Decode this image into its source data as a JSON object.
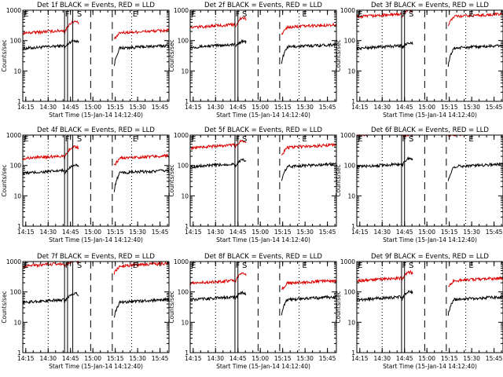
{
  "colors": {
    "events": "#000000",
    "lld": "#dd0000",
    "frame": "#000000",
    "background": "#ffffff"
  },
  "x_tick_labels": [
    "14:15",
    "14:30",
    "14:45",
    "15:00",
    "15:15",
    "15:30",
    "15:45"
  ],
  "y_tick_labels": [
    "1",
    "10",
    "100",
    "1000"
  ],
  "xlabel": "Start Time (15-Jan-14 14:12:40)",
  "ylabel": "Counts/sec",
  "chart_data": [
    {
      "type": "line",
      "title": "Det 1f BLACK = Events, RED = LLD",
      "xlabel": "Start Time (15-Jan-14 14:12:40)",
      "ylabel": "Counts/sec",
      "y_scale": "log",
      "ylim": [
        1,
        1000
      ],
      "x_range_min": [
        0,
        98
      ],
      "x_ticks_min": [
        2,
        17,
        32,
        47,
        62,
        77,
        92
      ],
      "x_tick_labels": [
        "14:15",
        "14:30",
        "14:45",
        "15:00",
        "15:15",
        "15:30",
        "15:45"
      ],
      "series": [
        {
          "name": "Events",
          "color": "#000000",
          "level": 55,
          "spike_level": 100,
          "notch_level": 12
        },
        {
          "name": "LLD",
          "color": "#dd0000",
          "level": 175,
          "spike_level": 420,
          "notch_level": 100
        }
      ],
      "gap_min": [
        37.5,
        61.0
      ],
      "regions": {
        "solid": [
          28.0,
          30.0,
          33.5
        ],
        "dashed": [
          45.5,
          60.0
        ],
        "dotted": [
          17.0,
          73.0
        ]
      },
      "markers": [
        {
          "label": "E",
          "x_min": 0.6
        },
        {
          "label": "F",
          "x_min": 28.3
        },
        {
          "label": "S",
          "x_min": 36.3
        },
        {
          "label": "E",
          "x_min": 73.6
        }
      ]
    },
    {
      "type": "line",
      "title": "Det 2f BLACK = Events, RED = LLD",
      "xlabel": "Start Time (15-Jan-14 14:12:40)",
      "ylabel": "Counts/sec",
      "y_scale": "log",
      "ylim": [
        1,
        1000
      ],
      "x_range_min": [
        0,
        98
      ],
      "x_ticks_min": [
        2,
        17,
        32,
        47,
        62,
        77,
        92
      ],
      "x_tick_labels": [
        "14:15",
        "14:30",
        "14:45",
        "15:00",
        "15:15",
        "15:30",
        "15:45"
      ],
      "series": [
        {
          "name": "Events",
          "color": "#000000",
          "level": 60,
          "spike_level": 95,
          "notch_level": 15
        },
        {
          "name": "LLD",
          "color": "#dd0000",
          "level": 270,
          "spike_level": 550,
          "notch_level": 150
        }
      ],
      "gap_min": [
        37.5,
        61.0
      ],
      "regions": {
        "solid": [
          30.0,
          32.0
        ],
        "dashed": [
          45.5,
          60.0
        ],
        "dotted": [
          17.0,
          73.0
        ]
      },
      "markers": [
        {
          "label": "E",
          "x_min": 0.6
        },
        {
          "label": "F",
          "x_min": 30.3
        },
        {
          "label": "S",
          "x_min": 34.8
        },
        {
          "label": "E",
          "x_min": 75.0
        }
      ]
    },
    {
      "type": "line",
      "title": "Det 3f BLACK = Events, RED = LLD",
      "xlabel": "Start Time (15-Jan-14 14:12:40)",
      "ylabel": "Counts/sec",
      "y_scale": "log",
      "ylim": [
        1,
        1000
      ],
      "x_range_min": [
        0,
        98
      ],
      "x_ticks_min": [
        2,
        17,
        32,
        47,
        62,
        77,
        92
      ],
      "x_tick_labels": [
        "14:15",
        "14:30",
        "14:45",
        "15:00",
        "15:15",
        "15:30",
        "15:45"
      ],
      "series": [
        {
          "name": "Events",
          "color": "#000000",
          "level": 55,
          "spike_level": 85,
          "notch_level": 12
        },
        {
          "name": "LLD",
          "color": "#dd0000",
          "level": 600,
          "spike_level": 1000,
          "notch_level": 300
        }
      ],
      "gap_min": [
        37.5,
        61.0
      ],
      "regions": {
        "solid": [
          30.0,
          32.0
        ],
        "dashed": [
          45.5,
          60.0
        ],
        "dotted": [
          17.0,
          73.0
        ]
      },
      "markers": [
        {
          "label": "E",
          "x_min": 0.6
        },
        {
          "label": "F",
          "x_min": 30.3
        },
        {
          "label": "S",
          "x_min": 34.8
        },
        {
          "label": "E",
          "x_min": 75.0
        }
      ]
    },
    {
      "type": "line",
      "title": "Det 4f BLACK = Events, RED = LLD",
      "xlabel": "Start Time (15-Jan-14 14:12:40)",
      "ylabel": "Counts/sec",
      "y_scale": "log",
      "ylim": [
        1,
        1000
      ],
      "x_range_min": [
        0,
        98
      ],
      "x_ticks_min": [
        2,
        17,
        32,
        47,
        62,
        77,
        92
      ],
      "x_tick_labels": [
        "14:15",
        "14:30",
        "14:45",
        "15:00",
        "15:15",
        "15:30",
        "15:45"
      ],
      "series": [
        {
          "name": "Events",
          "color": "#000000",
          "level": 55,
          "spike_level": 100,
          "notch_level": 12
        },
        {
          "name": "LLD",
          "color": "#dd0000",
          "level": 170,
          "spike_level": 420,
          "notch_level": 90
        }
      ],
      "gap_min": [
        37.5,
        61.0
      ],
      "regions": {
        "solid": [
          28.0,
          30.0,
          33.5
        ],
        "dashed": [
          45.5,
          60.0
        ],
        "dotted": [
          17.0,
          73.0
        ]
      },
      "markers": [
        {
          "label": "E",
          "x_min": 0.6
        },
        {
          "label": "F",
          "x_min": 28.3
        },
        {
          "label": "S",
          "x_min": 36.3
        },
        {
          "label": "E",
          "x_min": 73.6
        }
      ]
    },
    {
      "type": "line",
      "title": "Det 5f BLACK = Events, RED = LLD",
      "xlabel": "Start Time (15-Jan-14 14:12:40)",
      "ylabel": "Counts/sec",
      "y_scale": "log",
      "ylim": [
        1,
        1000
      ],
      "x_range_min": [
        0,
        98
      ],
      "x_ticks_min": [
        2,
        17,
        32,
        47,
        62,
        77,
        92
      ],
      "x_tick_labels": [
        "14:15",
        "14:30",
        "14:45",
        "15:00",
        "15:15",
        "15:30",
        "15:45"
      ],
      "series": [
        {
          "name": "Events",
          "color": "#000000",
          "level": 90,
          "spike_level": 150,
          "notch_level": 25
        },
        {
          "name": "LLD",
          "color": "#dd0000",
          "level": 380,
          "spike_level": 650,
          "notch_level": 200
        }
      ],
      "gap_min": [
        37.5,
        61.0
      ],
      "regions": {
        "solid": [
          30.0,
          32.0
        ],
        "dashed": [
          45.5,
          60.0
        ],
        "dotted": [
          17.0,
          73.0
        ]
      },
      "markers": [
        {
          "label": "E",
          "x_min": 0.6
        },
        {
          "label": "F",
          "x_min": 30.3
        },
        {
          "label": "S",
          "x_min": 34.8
        },
        {
          "label": "E",
          "x_min": 75.0
        }
      ]
    },
    {
      "type": "line",
      "title": "Det 6f BLACK = Events, RED = LLD",
      "xlabel": "Start Time (15-Jan-14 14:12:40)",
      "ylabel": "Counts/sec",
      "y_scale": "log",
      "ylim": [
        1,
        1000
      ],
      "x_range_min": [
        0,
        98
      ],
      "x_ticks_min": [
        2,
        17,
        32,
        47,
        62,
        77,
        92
      ],
      "x_tick_labels": [
        "14:15",
        "14:30",
        "14:45",
        "15:00",
        "15:15",
        "15:30",
        "15:45"
      ],
      "series": [
        {
          "name": "Events",
          "color": "#000000",
          "level": 90,
          "spike_level": 170,
          "notch_level": 25
        },
        {
          "name": "LLD",
          "color": "#dd0000",
          "level": 1000,
          "spike_level": 1000,
          "notch_level": 1000
        }
      ],
      "gap_min": [
        37.5,
        61.0
      ],
      "regions": {
        "solid": [
          30.0,
          32.0
        ],
        "dashed": [
          45.5,
          60.0
        ],
        "dotted": [
          17.0,
          73.0
        ]
      },
      "markers": [
        {
          "label": "E",
          "x_min": 0.6
        },
        {
          "label": "F",
          "x_min": 30.3
        },
        {
          "label": "S",
          "x_min": 34.8
        },
        {
          "label": "E",
          "x_min": 75.0
        }
      ]
    },
    {
      "type": "line",
      "title": "Det 7f BLACK = Events, RED = LLD",
      "xlabel": "Start Time (15-Jan-14 14:12:40)",
      "ylabel": "Counts/sec",
      "y_scale": "log",
      "ylim": [
        1,
        1000
      ],
      "x_range_min": [
        0,
        98
      ],
      "x_ticks_min": [
        2,
        17,
        32,
        47,
        62,
        77,
        92
      ],
      "x_tick_labels": [
        "14:15",
        "14:30",
        "14:45",
        "15:00",
        "15:15",
        "15:30",
        "15:45"
      ],
      "series": [
        {
          "name": "Events",
          "color": "#000000",
          "level": 45,
          "spike_level": 90,
          "notch_level": 12
        },
        {
          "name": "LLD",
          "color": "#dd0000",
          "level": 700,
          "spike_level": 1000,
          "notch_level": 400
        }
      ],
      "gap_min": [
        37.5,
        61.0
      ],
      "regions": {
        "solid": [
          28.0,
          30.0,
          33.5
        ],
        "dashed": [
          45.5,
          60.0
        ],
        "dotted": [
          17.0,
          73.0
        ]
      },
      "markers": [
        {
          "label": "E",
          "x_min": 0.6
        },
        {
          "label": "F",
          "x_min": 28.3
        },
        {
          "label": "S",
          "x_min": 36.3
        },
        {
          "label": "E",
          "x_min": 73.6
        }
      ]
    },
    {
      "type": "line",
      "title": "Det 8f BLACK = Events, RED = LLD",
      "xlabel": "Start Time (15-Jan-14 14:12:40)",
      "ylabel": "Counts/sec",
      "y_scale": "log",
      "ylim": [
        1,
        1000
      ],
      "x_range_min": [
        0,
        98
      ],
      "x_ticks_min": [
        2,
        17,
        32,
        47,
        62,
        77,
        92
      ],
      "x_tick_labels": [
        "14:15",
        "14:30",
        "14:45",
        "15:00",
        "15:15",
        "15:30",
        "15:45"
      ],
      "series": [
        {
          "name": "Events",
          "color": "#000000",
          "level": 55,
          "spike_level": 95,
          "notch_level": 15
        },
        {
          "name": "LLD",
          "color": "#dd0000",
          "level": 190,
          "spike_level": 400,
          "notch_level": 110
        }
      ],
      "gap_min": [
        37.5,
        61.0
      ],
      "regions": {
        "solid": [
          30.0,
          32.0
        ],
        "dashed": [
          45.5,
          60.0
        ],
        "dotted": [
          17.0,
          73.0
        ]
      },
      "markers": [
        {
          "label": "E",
          "x_min": 0.6
        },
        {
          "label": "F",
          "x_min": 30.3
        },
        {
          "label": "S",
          "x_min": 34.8
        },
        {
          "label": "E",
          "x_min": 75.0
        }
      ]
    },
    {
      "type": "line",
      "title": "Det 9f BLACK = Events, RED = LLD",
      "xlabel": "Start Time (15-Jan-14 14:12:40)",
      "ylabel": "Counts/sec",
      "y_scale": "log",
      "ylim": [
        1,
        1000
      ],
      "x_range_min": [
        0,
        98
      ],
      "x_ticks_min": [
        2,
        17,
        32,
        47,
        62,
        77,
        92
      ],
      "x_tick_labels": [
        "14:15",
        "14:30",
        "14:45",
        "15:00",
        "15:15",
        "15:30",
        "15:45"
      ],
      "series": [
        {
          "name": "Events",
          "color": "#000000",
          "level": 55,
          "spike_level": 100,
          "notch_level": 15
        },
        {
          "name": "LLD",
          "color": "#dd0000",
          "level": 230,
          "spike_level": 450,
          "notch_level": 150
        }
      ],
      "gap_min": [
        37.5,
        61.0
      ],
      "regions": {
        "solid": [
          30.0,
          32.0
        ],
        "dashed": [
          45.5,
          60.0
        ],
        "dotted": [
          17.0,
          73.0
        ]
      },
      "markers": [
        {
          "label": "E",
          "x_min": 0.6
        },
        {
          "label": "F",
          "x_min": 30.3
        },
        {
          "label": "S",
          "x_min": 34.8
        },
        {
          "label": "E",
          "x_min": 75.0
        }
      ]
    }
  ]
}
